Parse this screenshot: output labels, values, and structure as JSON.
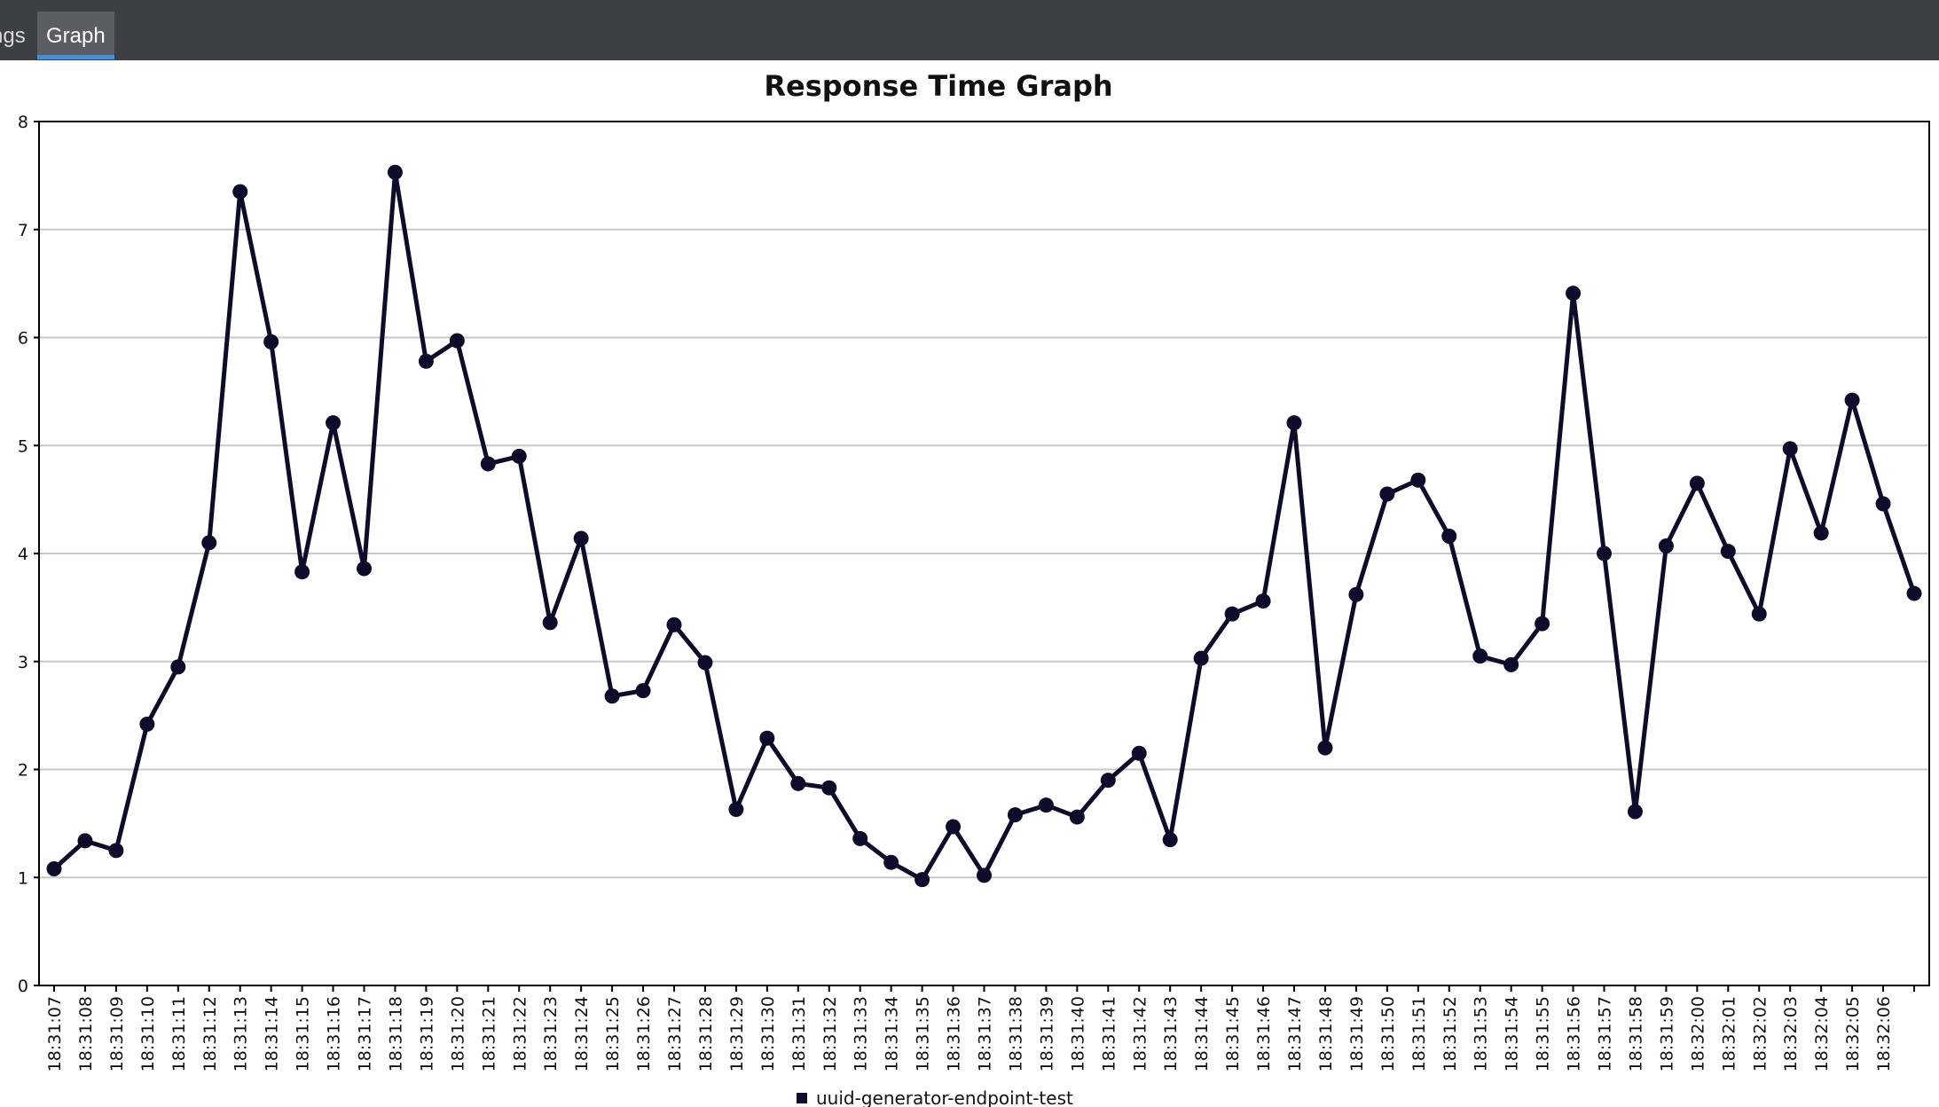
{
  "tabs": [
    {
      "label": "ngs",
      "active": false
    },
    {
      "label": "Graph",
      "active": true
    }
  ],
  "colors": {
    "series": "#0d0d2b",
    "grid": "#c8c8c8",
    "topbar": "#3c3f43"
  },
  "chart_data": {
    "type": "line",
    "title": "Response Time Graph",
    "xlabel": "",
    "ylabel": "",
    "ylim": [
      0,
      8
    ],
    "yticks": [
      0,
      1,
      2,
      3,
      4,
      5,
      6,
      7,
      8
    ],
    "grid": true,
    "legend": "bottom-center",
    "categories": [
      "18:31:07",
      "18:31:08",
      "18:31:09",
      "18:31:10",
      "18:31:11",
      "18:31:12",
      "18:31:13",
      "18:31:14",
      "18:31:15",
      "18:31:16",
      "18:31:17",
      "18:31:18",
      "18:31:19",
      "18:31:20",
      "18:31:21",
      "18:31:22",
      "18:31:23",
      "18:31:24",
      "18:31:25",
      "18:31:26",
      "18:31:27",
      "18:31:28",
      "18:31:29",
      "18:31:30",
      "18:31:31",
      "18:31:32",
      "18:31:33",
      "18:31:34",
      "18:31:35",
      "18:31:36",
      "18:31:37",
      "18:31:38",
      "18:31:39",
      "18:31:40",
      "18:31:41",
      "18:31:42",
      "18:31:43",
      "18:31:44",
      "18:31:45",
      "18:31:46",
      "18:31:47",
      "18:31:48",
      "18:31:49",
      "18:31:50",
      "18:31:51",
      "18:31:52",
      "18:31:53",
      "18:31:54",
      "18:31:55",
      "18:31:56",
      "18:31:57",
      "18:31:58",
      "18:31:59",
      "18:32:00",
      "18:32:01",
      "18:32:02",
      "18:32:03",
      "18:32:04",
      "18:32:05",
      "18:32:06",
      ""
    ],
    "series": [
      {
        "name": "uuid-generator-endpoint-test",
        "values": [
          1.08,
          1.34,
          1.25,
          2.42,
          2.95,
          4.1,
          7.35,
          5.96,
          3.83,
          5.21,
          3.86,
          7.53,
          5.78,
          5.97,
          4.83,
          4.9,
          3.36,
          4.14,
          2.68,
          2.73,
          3.34,
          2.99,
          1.63,
          2.29,
          1.87,
          1.83,
          1.36,
          1.14,
          0.98,
          1.47,
          1.02,
          1.58,
          1.67,
          1.56,
          1.9,
          2.15,
          1.35,
          3.03,
          3.44,
          3.56,
          5.21,
          2.2,
          3.62,
          4.55,
          4.68,
          4.16,
          3.05,
          2.97,
          3.35,
          6.41,
          4.0,
          1.61,
          4.07,
          4.65,
          4.02,
          3.44,
          4.97,
          4.19,
          5.42,
          4.46,
          3.63
        ]
      }
    ]
  }
}
